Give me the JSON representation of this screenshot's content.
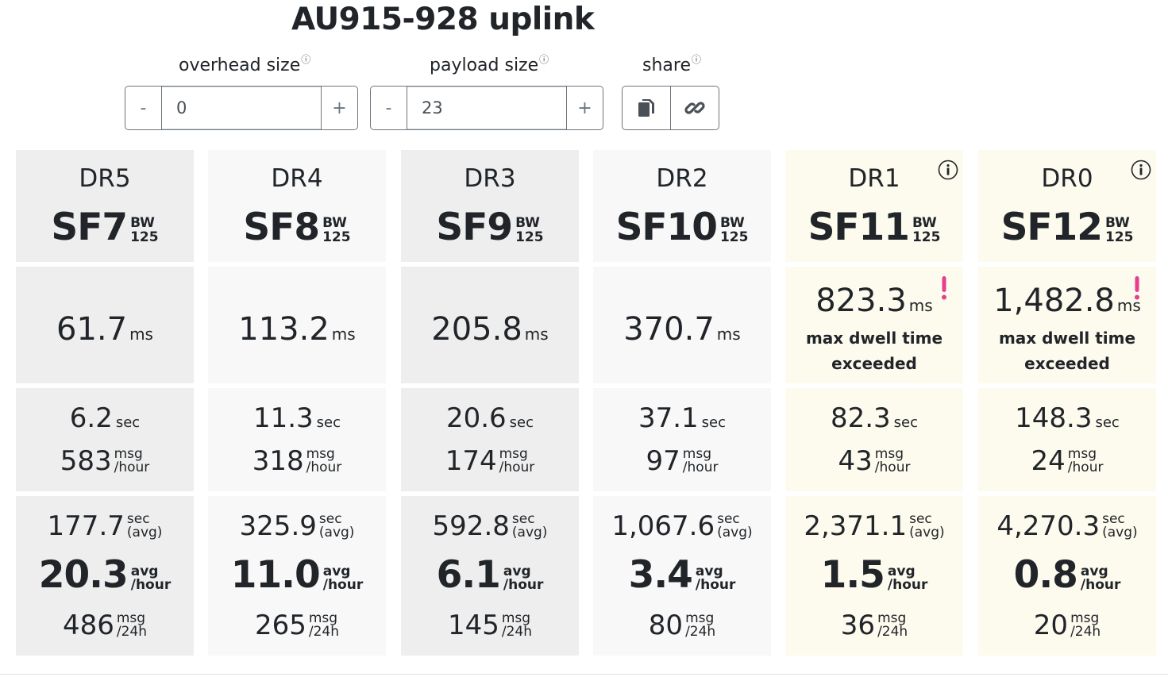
{
  "title": "AU915-928 uplink",
  "controls": {
    "overhead": {
      "label": "overhead size",
      "info": "ⓘ",
      "value": "0",
      "minus": "-",
      "plus": "+"
    },
    "payload": {
      "label": "payload size",
      "info": "ⓘ",
      "value": "23",
      "minus": "-",
      "plus": "+"
    },
    "share": {
      "label": "share",
      "info": "ⓘ",
      "copy_icon": "copy-icon",
      "link_icon": "link-icon"
    }
  },
  "colors": {
    "dark": "#eeeeee",
    "light": "#f8f8f8",
    "warn": "#fdfaee",
    "alert": "#e83e8c"
  },
  "columns": [
    {
      "dr": "DR5",
      "sf": "SF7",
      "bw": "BW",
      "bw_value": "125",
      "airtime": "61.7",
      "airtime_unit": "ms",
      "warning": "",
      "interval": "6.2",
      "interval_unit": "sec",
      "msg_hour": "583",
      "msg_label": "msg",
      "per_hour": "/hour",
      "avg_interval": "177.7",
      "avg_sec": "sec",
      "avg_label": "(avg)",
      "avg_rate": "20.3",
      "avg_word": "avg",
      "avg_per_hour": "/hour",
      "msg_24h": "486",
      "per_24h": "/24h",
      "tone": "dark",
      "info": false
    },
    {
      "dr": "DR4",
      "sf": "SF8",
      "bw": "BW",
      "bw_value": "125",
      "airtime": "113.2",
      "airtime_unit": "ms",
      "warning": "",
      "interval": "11.3",
      "interval_unit": "sec",
      "msg_hour": "318",
      "msg_label": "msg",
      "per_hour": "/hour",
      "avg_interval": "325.9",
      "avg_sec": "sec",
      "avg_label": "(avg)",
      "avg_rate": "11.0",
      "avg_word": "avg",
      "avg_per_hour": "/hour",
      "msg_24h": "265",
      "per_24h": "/24h",
      "tone": "light",
      "info": false
    },
    {
      "dr": "DR3",
      "sf": "SF9",
      "bw": "BW",
      "bw_value": "125",
      "airtime": "205.8",
      "airtime_unit": "ms",
      "warning": "",
      "interval": "20.6",
      "interval_unit": "sec",
      "msg_hour": "174",
      "msg_label": "msg",
      "per_hour": "/hour",
      "avg_interval": "592.8",
      "avg_sec": "sec",
      "avg_label": "(avg)",
      "avg_rate": "6.1",
      "avg_word": "avg",
      "avg_per_hour": "/hour",
      "msg_24h": "145",
      "per_24h": "/24h",
      "tone": "dark",
      "info": false
    },
    {
      "dr": "DR2",
      "sf": "SF10",
      "bw": "BW",
      "bw_value": "125",
      "airtime": "370.7",
      "airtime_unit": "ms",
      "warning": "",
      "interval": "37.1",
      "interval_unit": "sec",
      "msg_hour": "97",
      "msg_label": "msg",
      "per_hour": "/hour",
      "avg_interval": "1,067.6",
      "avg_sec": "sec",
      "avg_label": "(avg)",
      "avg_rate": "3.4",
      "avg_word": "avg",
      "avg_per_hour": "/hour",
      "msg_24h": "80",
      "per_24h": "/24h",
      "tone": "light",
      "info": false
    },
    {
      "dr": "DR1",
      "sf": "SF11",
      "bw": "BW",
      "bw_value": "125",
      "airtime": "823.3",
      "airtime_unit": "ms",
      "warning": "max dwell time exceeded",
      "interval": "82.3",
      "interval_unit": "sec",
      "msg_hour": "43",
      "msg_label": "msg",
      "per_hour": "/hour",
      "avg_interval": "2,371.1",
      "avg_sec": "sec",
      "avg_label": "(avg)",
      "avg_rate": "1.5",
      "avg_word": "avg",
      "avg_per_hour": "/hour",
      "msg_24h": "36",
      "per_24h": "/24h",
      "tone": "warn",
      "info": true
    },
    {
      "dr": "DR0",
      "sf": "SF12",
      "bw": "BW",
      "bw_value": "125",
      "airtime": "1,482.8",
      "airtime_unit": "ms",
      "warning": "max dwell time exceeded",
      "interval": "148.3",
      "interval_unit": "sec",
      "msg_hour": "24",
      "msg_label": "msg",
      "per_hour": "/hour",
      "avg_interval": "4,270.3",
      "avg_sec": "sec",
      "avg_label": "(avg)",
      "avg_rate": "0.8",
      "avg_word": "avg",
      "avg_per_hour": "/hour",
      "msg_24h": "20",
      "per_24h": "/24h",
      "tone": "warn",
      "info": true
    }
  ]
}
